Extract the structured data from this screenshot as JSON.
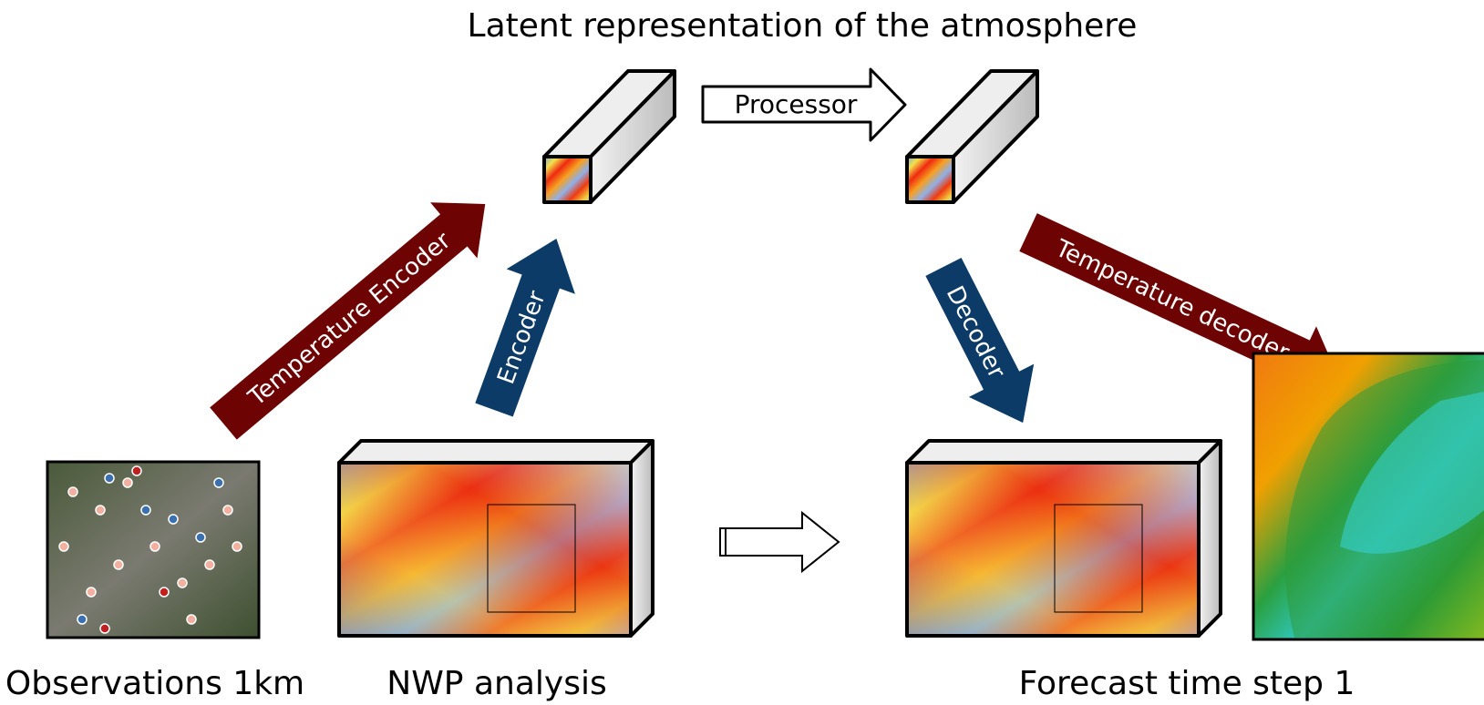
{
  "title": "Latent representation of the atmosphere",
  "arrows": [
    {
      "label": "Processor"
    },
    {
      "label": "Temperature Encoder"
    },
    {
      "label": "Encoder"
    },
    {
      "label": "Decoder"
    },
    {
      "label": "Temperature decoder"
    }
  ],
  "panels": [
    {
      "label": "Observations 1km"
    },
    {
      "label": "NWP analysis"
    },
    {
      "label": "Forecast time step 1"
    }
  ]
}
